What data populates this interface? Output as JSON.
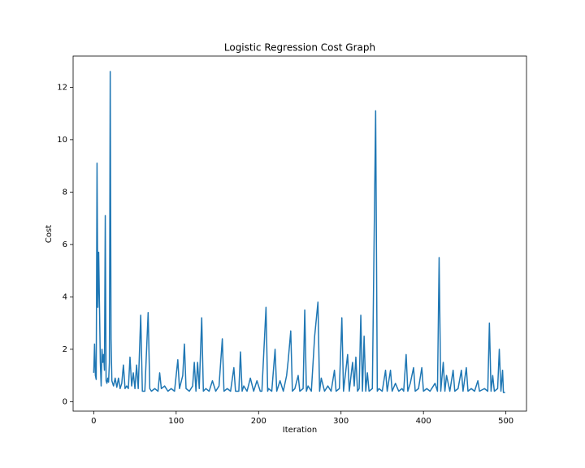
{
  "chart_data": {
    "type": "line",
    "title": "Logistic Regression Cost Graph",
    "x_label": "Iteration",
    "y_label": "Cost",
    "xlim": [
      -25,
      525
    ],
    "ylim": [
      -0.36,
      13.19
    ],
    "xticks": [
      0,
      100,
      200,
      300,
      400,
      500
    ],
    "yticks": [
      0,
      2,
      4,
      6,
      8,
      10,
      12
    ],
    "series": [
      {
        "color": "#1f77b4",
        "x": [
          0,
          1,
          2,
          3,
          4,
          5,
          6,
          7,
          8,
          9,
          10,
          11,
          12,
          13,
          14,
          15,
          16,
          17,
          18,
          19,
          20,
          21,
          22,
          24,
          26,
          28,
          30,
          32,
          34,
          36,
          38,
          40,
          42,
          44,
          46,
          48,
          50,
          52,
          54,
          57,
          59,
          62,
          66,
          68,
          70,
          74,
          78,
          80,
          82,
          86,
          90,
          94,
          98,
          102,
          104,
          108,
          110,
          112,
          116,
          120,
          122,
          124,
          126,
          128,
          131,
          133,
          136,
          140,
          144,
          148,
          152,
          156,
          158,
          162,
          166,
          170,
          172,
          176,
          178,
          180,
          182,
          186,
          190,
          194,
          198,
          202,
          204,
          209,
          211,
          212,
          216,
          220,
          222,
          226,
          230,
          234,
          236,
          239,
          241,
          244,
          248,
          250,
          254,
          256,
          258,
          260,
          264,
          268,
          272,
          274,
          276,
          280,
          284,
          288,
          292,
          294,
          298,
          301,
          303,
          308,
          310,
          314,
          316,
          318,
          320,
          322,
          324,
          326,
          328,
          330,
          332,
          334,
          338,
          342,
          344,
          346,
          350,
          354,
          356,
          360,
          362,
          366,
          370,
          374,
          376,
          379,
          381,
          384,
          388,
          390,
          394,
          398,
          400,
          404,
          408,
          414,
          417,
          419,
          421,
          424,
          426,
          428,
          432,
          436,
          438,
          442,
          446,
          448,
          452,
          454,
          458,
          462,
          466,
          468,
          474,
          478,
          480,
          482,
          484,
          486,
          490,
          492,
          494,
          496,
          497,
          499
        ],
        "values": [
          1.1,
          2.2,
          1.0,
          0.85,
          9.1,
          3.6,
          5.7,
          3.6,
          1.5,
          0.6,
          2.0,
          1.5,
          1.8,
          1.2,
          7.1,
          0.8,
          0.7,
          0.9,
          0.75,
          1.5,
          12.6,
          2.4,
          0.8,
          0.6,
          0.9,
          0.55,
          0.9,
          0.5,
          0.7,
          1.4,
          0.5,
          0.6,
          0.5,
          1.7,
          0.6,
          1.1,
          0.5,
          1.4,
          0.5,
          3.3,
          0.4,
          0.4,
          3.4,
          0.5,
          0.4,
          0.5,
          0.4,
          1.1,
          0.5,
          0.6,
          0.4,
          0.5,
          0.4,
          1.6,
          0.5,
          1.0,
          2.2,
          0.5,
          0.4,
          0.6,
          1.5,
          0.4,
          1.5,
          0.5,
          3.2,
          0.4,
          0.5,
          0.4,
          0.8,
          0.4,
          0.6,
          2.4,
          0.4,
          0.5,
          0.4,
          1.3,
          0.4,
          0.4,
          1.9,
          0.4,
          0.6,
          0.4,
          0.9,
          0.4,
          0.8,
          0.4,
          0.4,
          3.6,
          0.4,
          0.5,
          0.4,
          2.0,
          0.4,
          0.8,
          0.4,
          1.0,
          1.6,
          2.7,
          0.4,
          0.5,
          1.0,
          0.4,
          0.5,
          3.5,
          0.4,
          0.6,
          0.4,
          2.5,
          3.8,
          0.4,
          0.9,
          0.4,
          0.6,
          0.4,
          1.2,
          0.4,
          0.5,
          3.2,
          0.4,
          1.8,
          0.4,
          1.5,
          0.6,
          1.7,
          0.4,
          0.5,
          3.3,
          0.4,
          2.5,
          0.4,
          1.1,
          0.4,
          0.5,
          11.1,
          0.4,
          0.5,
          0.4,
          1.2,
          0.4,
          1.2,
          0.4,
          0.7,
          0.4,
          0.5,
          0.4,
          1.8,
          0.4,
          0.7,
          1.3,
          0.4,
          0.5,
          1.3,
          0.4,
          0.5,
          0.4,
          0.7,
          0.4,
          5.5,
          0.4,
          1.5,
          0.4,
          1.0,
          0.4,
          1.2,
          0.4,
          0.5,
          1.2,
          0.4,
          1.3,
          0.4,
          0.5,
          0.4,
          0.8,
          0.4,
          0.5,
          0.4,
          3.0,
          0.4,
          1.0,
          0.4,
          0.5,
          2.0,
          0.4,
          1.2,
          0.35,
          0.35
        ]
      }
    ]
  }
}
